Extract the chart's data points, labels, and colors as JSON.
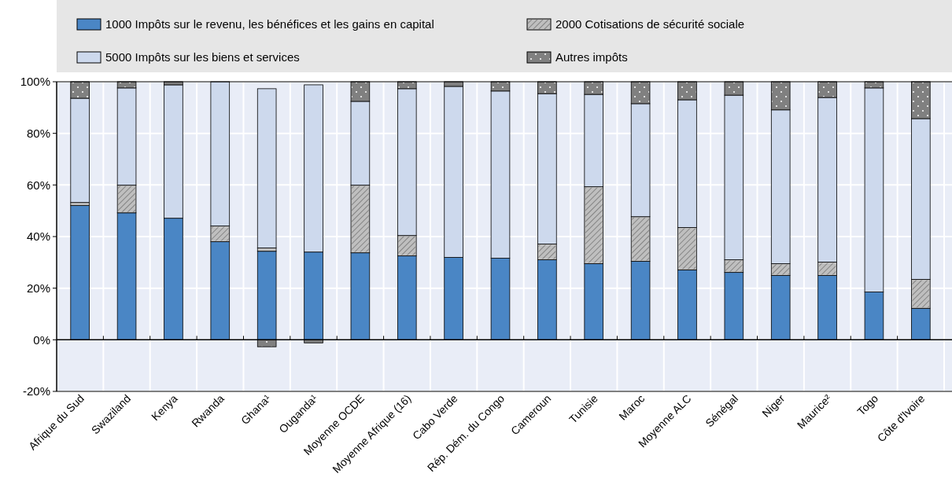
{
  "chart_data": {
    "type": "bar",
    "stacked": true,
    "legend": "top",
    "grid": true,
    "categories": [
      "Afrique du Sud",
      "Swaziland",
      "Kenya",
      "Rwanda",
      "Ghana¹",
      "Ouganda¹",
      "Moyenne OCDE",
      "Moyenne Afrique (16)",
      "Cabo Verde",
      "Rép. Dém. du Congo",
      "Cameroun",
      "Tunisie",
      "Maroc",
      "Moyenne ALC",
      "Sénégal",
      "Niger",
      "Maurice²",
      "Togo",
      "Côte d'Ivoire"
    ],
    "ylim": [
      -20,
      100
    ],
    "yticks": [
      {
        "value": -20,
        "label": "-20%"
      },
      {
        "value": 0,
        "label": "0%"
      },
      {
        "value": 20,
        "label": "20%"
      },
      {
        "value": 40,
        "label": "40%"
      },
      {
        "value": 60,
        "label": "60%"
      },
      {
        "value": 80,
        "label": "80%"
      },
      {
        "value": 100,
        "label": "100%"
      }
    ],
    "series": [
      {
        "name": "1000 Impôts sur le revenu, les bénéfices et les gains en capital",
        "color": "#4a86c5",
        "values": [
          52,
          49.2,
          47.1,
          38,
          34.3,
          34,
          33.7,
          32.5,
          31.9,
          31.6,
          31,
          29.5,
          30.4,
          27.1,
          26.1,
          24.9,
          24.9,
          18.5,
          12.2
        ]
      },
      {
        "name": "2000 Cotisations de sécurité sociale",
        "color": "#bfbfbf",
        "values": [
          1.2,
          10.7,
          0,
          6.1,
          1.3,
          0,
          26.2,
          7.9,
          0,
          0,
          6.1,
          29.8,
          17.3,
          16.4,
          4.9,
          4.6,
          5.2,
          0,
          11.2
        ]
      },
      {
        "name": "5000 Impôts sur les biens et services",
        "color": "#cdd9ed",
        "values": [
          40.4,
          37.7,
          51.7,
          55.9,
          61.7,
          64.8,
          32.5,
          56.9,
          66.3,
          64.8,
          58.3,
          35.8,
          43.8,
          49.5,
          63.8,
          59.6,
          63.8,
          79.1,
          62.3
        ]
      },
      {
        "name": "Autres impôts",
        "color": "#808080",
        "values": [
          6.4,
          2.4,
          1.2,
          0,
          -2.7,
          -1.2,
          7.6,
          2.7,
          1.8,
          3.6,
          4.6,
          4.9,
          8.5,
          7,
          5.2,
          10.9,
          6.1,
          2.4,
          14.3
        ]
      }
    ]
  }
}
